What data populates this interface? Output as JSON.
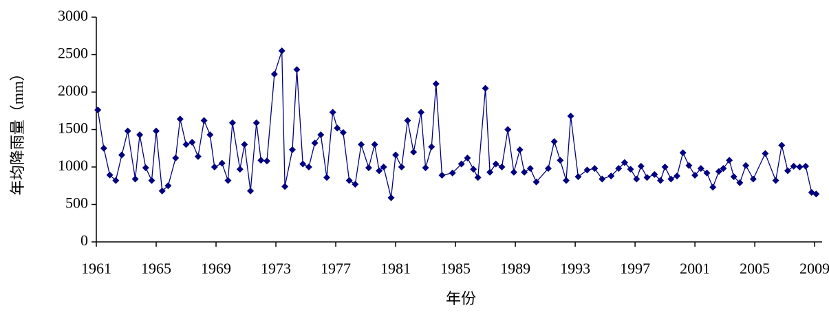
{
  "chart_data": {
    "type": "line",
    "x_label": "年份",
    "y_label": "年均降雨量（mm）",
    "color": "#000080",
    "marker": "diamond",
    "x": [
      1961.1,
      1961.5,
      1961.9,
      1962.3,
      1962.7,
      1963.1,
      1963.6,
      1963.9,
      1964.3,
      1964.7,
      1965.0,
      1965.4,
      1965.8,
      1966.3,
      1966.6,
      1967.0,
      1967.4,
      1967.8,
      1968.2,
      1968.6,
      1968.9,
      1969.4,
      1969.8,
      1970.1,
      1970.6,
      1970.9,
      1971.3,
      1971.7,
      1972.0,
      1972.4,
      1972.9,
      1973.4,
      1973.6,
      1974.1,
      1974.4,
      1974.8,
      1975.2,
      1975.6,
      1976.0,
      1976.4,
      1976.8,
      1977.1,
      1977.5,
      1977.9,
      1978.3,
      1978.7,
      1979.2,
      1979.6,
      1979.9,
      1980.2,
      1980.7,
      1981.0,
      1981.4,
      1981.8,
      1982.2,
      1982.7,
      1983.0,
      1983.4,
      1983.7,
      1984.1,
      1984.8,
      1985.4,
      1985.8,
      1986.2,
      1986.5,
      1987.0,
      1987.3,
      1987.7,
      1988.1,
      1988.5,
      1988.9,
      1989.3,
      1989.6,
      1990.0,
      1990.4,
      1991.2,
      1991.6,
      1992.0,
      1992.4,
      1992.7,
      1993.2,
      1993.8,
      1994.3,
      1994.8,
      1995.4,
      1995.9,
      1996.3,
      1996.7,
      1997.1,
      1997.4,
      1997.8,
      1998.3,
      1998.7,
      1999.0,
      1999.4,
      1999.8,
      2000.2,
      2000.6,
      2001.0,
      2001.4,
      2001.8,
      2002.2,
      2002.6,
      2002.9,
      2003.3,
      2003.6,
      2004.0,
      2004.4,
      2004.9,
      2005.7,
      2006.4,
      2006.8,
      2007.2,
      2007.6,
      2008.0,
      2008.4,
      2008.8,
      2009.1
    ],
    "values": [
      1761,
      1250,
      893,
      820,
      1160,
      1480,
      840,
      1430,
      990,
      820,
      1480,
      680,
      750,
      1120,
      1640,
      1300,
      1330,
      1140,
      1620,
      1430,
      1000,
      1050,
      820,
      1590,
      970,
      1300,
      680,
      1590,
      1090,
      1080,
      2240,
      2550,
      740,
      1230,
      2300,
      1040,
      1000,
      1320,
      1430,
      860,
      1730,
      1520,
      1460,
      820,
      770,
      1300,
      990,
      1300,
      950,
      1000,
      590,
      1160,
      1000,
      1620,
      1200,
      1730,
      990,
      1270,
      2110,
      890,
      920,
      1040,
      1120,
      970,
      860,
      2050,
      930,
      1040,
      1000,
      1500,
      930,
      1230,
      930,
      980,
      800,
      980,
      1340,
      1090,
      820,
      1680,
      870,
      960,
      980,
      840,
      880,
      980,
      1060,
      970,
      840,
      1010,
      860,
      900,
      820,
      1000,
      840,
      880,
      1190,
      1020,
      890,
      980,
      920,
      730,
      940,
      980,
      1090,
      870,
      790,
      1020,
      840,
      1180,
      820,
      1290,
      950,
      1010,
      1000,
      1010,
      660,
      640
    ],
    "xlim": [
      1961,
      2009.5
    ],
    "xticks": [
      1961,
      1965,
      1969,
      1973,
      1977,
      1981,
      1985,
      1989,
      1993,
      1997,
      2001,
      2005,
      2009
    ],
    "ylim": [
      0,
      3000
    ],
    "yticks": [
      0,
      500,
      1000,
      1500,
      2000,
      2500,
      3000
    ]
  }
}
